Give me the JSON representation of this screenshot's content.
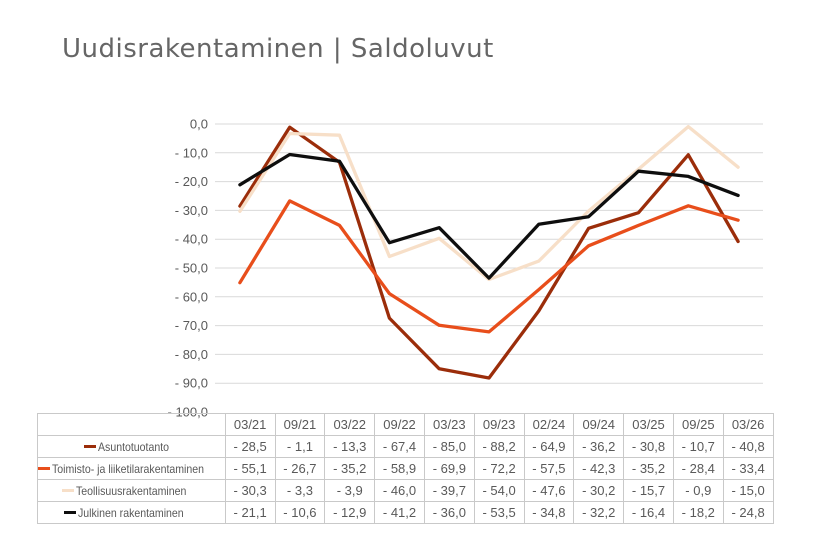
{
  "title": "Uudisrakentaminen | Saldoluvut",
  "colors": {
    "title_text": "#666666",
    "axis_text": "#595959",
    "gridline": "#d9d9d9",
    "table_border": "#c9c9c9",
    "table_text": "#595959",
    "background": "#ffffff"
  },
  "chart_data": {
    "type": "line",
    "title": "Uudisrakentaminen | Saldoluvut",
    "categories": [
      "03/21",
      "09/21",
      "03/22",
      "09/22",
      "03/23",
      "09/23",
      "02/24",
      "09/24",
      "03/25",
      "09/25",
      "03/26"
    ],
    "series": [
      {
        "name": "Asuntotuotanto",
        "color": "#9B2D0A",
        "values": [
          -28.5,
          -1.1,
          -13.3,
          -67.4,
          -85.0,
          -88.2,
          -64.9,
          -36.2,
          -30.8,
          -10.7,
          -40.8
        ]
      },
      {
        "name": "Toimisto- ja liiketilarakentaminen",
        "color": "#E84E1B",
        "values": [
          -55.1,
          -26.7,
          -35.2,
          -58.9,
          -69.9,
          -72.2,
          -57.5,
          -42.3,
          -35.2,
          -28.4,
          -33.4
        ]
      },
      {
        "name": "Teollisuusrakentaminen",
        "color": "#F7DFC8",
        "values": [
          -30.3,
          -3.3,
          -3.9,
          -46.0,
          -39.7,
          -54.0,
          -47.6,
          -30.2,
          -15.7,
          -0.9,
          -15.0
        ]
      },
      {
        "name": "Julkinen rakentaminen",
        "color": "#0e0e0e",
        "values": [
          -21.1,
          -10.6,
          -12.9,
          -41.2,
          -36.0,
          -53.5,
          -34.8,
          -32.2,
          -16.4,
          -18.2,
          -24.8
        ]
      }
    ],
    "ylim": [
      -100,
      0
    ],
    "ytick_step": 10,
    "yticklabels": [
      "0,0",
      "- 10,0",
      "- 20,0",
      "- 30,0",
      "- 40,0",
      "- 50,0",
      "- 60,0",
      "- 70,0",
      "- 80,0",
      "- 90,0",
      "- 100,0"
    ],
    "grid": true,
    "legend_position": "table-left",
    "number_format": "decimal-comma-one-digit-minus-space"
  }
}
